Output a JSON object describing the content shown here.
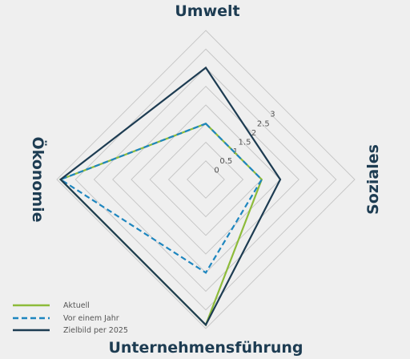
{
  "chart_data": {
    "type": "radar",
    "axes": [
      "Umwelt",
      "Soziales",
      "Unternehmensführung",
      "Ökonomie"
    ],
    "radial_ticks": [
      "0",
      "0.5",
      "1",
      "1.5",
      "2",
      "2.5",
      "3"
    ],
    "rlim": [
      -0.5,
      3
    ],
    "series": [
      {
        "name": "Aktuell",
        "values": [
          1,
          1,
          3.4,
          3.4
        ],
        "color": "#8dbb3a",
        "dash": "solid"
      },
      {
        "name": "Vor einem Jahr",
        "values": [
          1,
          1,
          2,
          3.4
        ],
        "color": "#1e86bf",
        "dash": "dashed"
      },
      {
        "name": "Zielbild per 2025",
        "values": [
          2.5,
          1.5,
          3.4,
          3.4
        ],
        "color": "#1d3c52",
        "dash": "solid"
      }
    ],
    "legend_position": "bottom-left",
    "grid": true
  }
}
